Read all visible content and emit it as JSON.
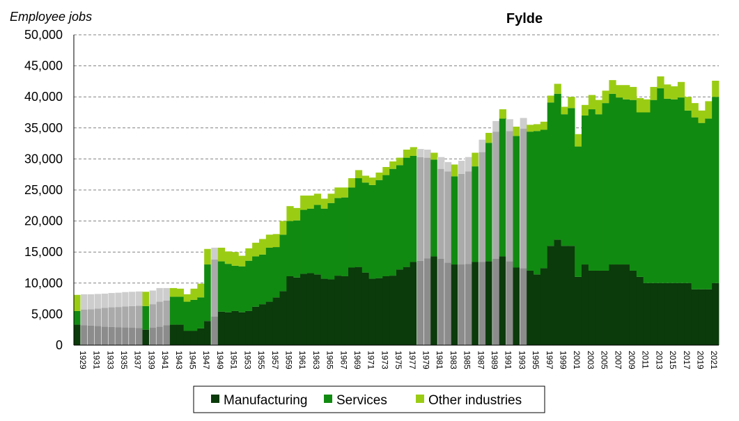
{
  "chart_data": {
    "type": "bar",
    "stacked": true,
    "title": "Fylde",
    "ylabel": "Employee jobs",
    "xlabel": "",
    "ylim": [
      0,
      50000
    ],
    "yticks": [
      "0",
      "5,000",
      "10,000",
      "15,000",
      "20,000",
      "25,000",
      "30,000",
      "35,000",
      "40,000",
      "45,000",
      "50,000"
    ],
    "grid": "horizontal-dashed",
    "legend_position": "bottom",
    "colors": {
      "Manufacturing": "#0b3a0b",
      "Services": "#118a11",
      "Other industries": "#9bcc14",
      "estimated_dark": "#8c8c8c",
      "estimated_mid": "#aaaaaa",
      "estimated_light": "#cdcdcd"
    },
    "x": [
      1929,
      1930,
      1931,
      1932,
      1933,
      1934,
      1935,
      1936,
      1937,
      1938,
      1939,
      1940,
      1941,
      1942,
      1943,
      1944,
      1945,
      1946,
      1947,
      1948,
      1949,
      1950,
      1951,
      1952,
      1953,
      1954,
      1955,
      1956,
      1957,
      1958,
      1959,
      1960,
      1961,
      1962,
      1963,
      1964,
      1965,
      1966,
      1967,
      1968,
      1969,
      1970,
      1971,
      1972,
      1973,
      1974,
      1975,
      1976,
      1977,
      1978,
      1979,
      1980,
      1981,
      1982,
      1983,
      1984,
      1985,
      1986,
      1987,
      1988,
      1989,
      1990,
      1991,
      1992,
      1993,
      1994,
      1995,
      1996,
      1997,
      1998,
      1999,
      2000,
      2001,
      2002,
      2003,
      2004,
      2005,
      2006,
      2007,
      2008,
      2009,
      2010,
      2011,
      2012,
      2013,
      2014,
      2015,
      2016,
      2017,
      2018,
      2019,
      2020,
      2021,
      2022
    ],
    "estimated": [
      false,
      true,
      true,
      true,
      true,
      true,
      true,
      true,
      true,
      true,
      false,
      true,
      true,
      true,
      false,
      false,
      false,
      false,
      false,
      false,
      true,
      false,
      false,
      false,
      false,
      false,
      false,
      false,
      false,
      false,
      false,
      false,
      false,
      false,
      false,
      false,
      false,
      false,
      false,
      false,
      false,
      false,
      false,
      false,
      false,
      false,
      false,
      false,
      false,
      false,
      true,
      true,
      false,
      true,
      true,
      false,
      true,
      true,
      false,
      true,
      false,
      true,
      false,
      true,
      false,
      true,
      false,
      false,
      false,
      false,
      false,
      false,
      false,
      false,
      false,
      false,
      false,
      false,
      false,
      false,
      false,
      false,
      false,
      false,
      false,
      false,
      false,
      false,
      false,
      false,
      false,
      false,
      false,
      false
    ],
    "series": [
      {
        "name": "Manufacturing",
        "values": [
          3300,
          3200,
          3150,
          3100,
          3000,
          2950,
          2900,
          2850,
          2800,
          2750,
          2500,
          2800,
          3000,
          3200,
          3300,
          3300,
          2300,
          2300,
          2700,
          3900,
          4600,
          5400,
          5300,
          5500,
          5300,
          5500,
          6200,
          6600,
          7000,
          7700,
          8700,
          11100,
          10900,
          11500,
          11600,
          11400,
          10700,
          10600,
          11200,
          11100,
          12500,
          12600,
          11700,
          10700,
          10800,
          11100,
          11200,
          12200,
          12600,
          13400,
          13600,
          14000,
          14300,
          13900,
          13300,
          13000,
          13000,
          13100,
          13400,
          13400,
          13500,
          13900,
          14300,
          13500,
          12500,
          12400,
          12000,
          11400,
          12400,
          16000,
          17000,
          16000,
          16000,
          11000,
          13000,
          12000,
          12000,
          12000,
          13000,
          13000,
          13000,
          12000,
          11000,
          10000,
          10000,
          10000,
          10000,
          10000,
          10000,
          10000,
          9000,
          9000,
          9000,
          10000
        ]
      },
      {
        "name": "Services",
        "values": [
          2200,
          2550,
          2650,
          2800,
          3000,
          3150,
          3250,
          3400,
          3500,
          3600,
          3800,
          3800,
          4000,
          4000,
          4500,
          4500,
          4700,
          5000,
          5000,
          9100,
          9200,
          8100,
          7800,
          7300,
          7400,
          8100,
          8100,
          8000,
          8700,
          8100,
          9100,
          8900,
          9200,
          10300,
          10400,
          11200,
          11300,
          12300,
          12500,
          12700,
          12900,
          14300,
          14500,
          15100,
          15800,
          16300,
          17200,
          16800,
          17600,
          17100,
          16700,
          16200,
          15600,
          14500,
          14700,
          14200,
          14600,
          14900,
          15400,
          17700,
          19100,
          20500,
          22200,
          21000,
          21200,
          22500,
          22400,
          23100,
          22300,
          23100,
          23500,
          21200,
          22200,
          21000,
          24000,
          26000,
          25200,
          27000,
          27500,
          26900,
          26600,
          27500,
          26500,
          27500,
          29500,
          31400,
          29700,
          29600,
          29900,
          27800,
          27700,
          26800,
          27500,
          30000
        ]
      },
      {
        "name": "Other industries",
        "values": [
          2600,
          2450,
          2400,
          2350,
          2300,
          2300,
          2300,
          2300,
          2300,
          2300,
          2300,
          2200,
          2200,
          2000,
          1400,
          1300,
          1200,
          1800,
          2200,
          2500,
          1900,
          2200,
          2000,
          2200,
          1700,
          2000,
          2200,
          2500,
          2100,
          2100,
          2200,
          2400,
          2000,
          2300,
          2100,
          1800,
          1600,
          1500,
          1700,
          1600,
          1500,
          1300,
          1100,
          1200,
          1200,
          1300,
          1200,
          1200,
          1300,
          1400,
          1300,
          1300,
          1100,
          1900,
          1500,
          1900,
          2100,
          2300,
          2200,
          2000,
          1600,
          1700,
          1500,
          1900,
          1500,
          1700,
          1100,
          1100,
          1300,
          1100,
          1600,
          1200,
          1800,
          2000,
          1700,
          2300,
          2300,
          2000,
          2200,
          2000,
          2300,
          2100,
          2300,
          2100,
          2100,
          1900,
          2300,
          2100,
          2500,
          2200,
          2300,
          2000,
          2800,
          2600
        ]
      }
    ],
    "legend": [
      "Manufacturing",
      "Services",
      "Other industries"
    ]
  }
}
